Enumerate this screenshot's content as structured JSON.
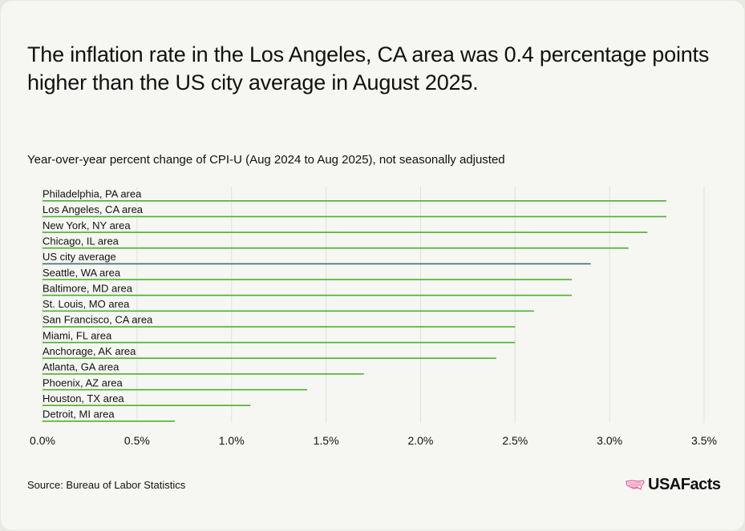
{
  "title": "The inflation rate in the Los Angeles, CA area was 0.4 percentage points higher than the US city average in August 2025.",
  "subtitle": "Year-over-year percent change of CPI-U (Aug 2024 to Aug 2025), not seasonally adjusted",
  "source": "Source: Bureau of Labor Statistics",
  "logo": "USAFacts",
  "colors": {
    "bar": "#4caf2a",
    "highlight": "#3f6e6a",
    "logo_accent": "#e8559a",
    "grid": "#e2e2dc",
    "background": "#f6f6f2"
  },
  "chart_data": {
    "type": "bar",
    "orientation": "horizontal",
    "categories": [
      "Philadelphia, PA area",
      "Los Angeles, CA area",
      "New York, NY area",
      "Chicago, IL area",
      "US city average",
      "Seattle, WA area",
      "Baltimore, MD area",
      "St. Louis, MO area",
      "San Francisco, CA area",
      "Miami, FL area",
      "Anchorage, AK area",
      "Atlanta, GA area",
      "Phoenix, AZ area",
      "Houston, TX area",
      "Detroit, MI area"
    ],
    "values": [
      3.3,
      3.3,
      3.2,
      3.1,
      2.9,
      2.8,
      2.8,
      2.6,
      2.5,
      2.5,
      2.4,
      1.7,
      1.4,
      1.1,
      0.7
    ],
    "highlight_category": "US city average",
    "xlim": [
      0,
      3.5
    ],
    "xticks": [
      "0.0%",
      "0.5%",
      "1.0%",
      "1.5%",
      "2.0%",
      "2.5%",
      "3.0%",
      "3.5%"
    ],
    "xtick_values": [
      0,
      0.5,
      1,
      1.5,
      2,
      2.5,
      3,
      3.5
    ],
    "grid": true,
    "legend": "none"
  }
}
